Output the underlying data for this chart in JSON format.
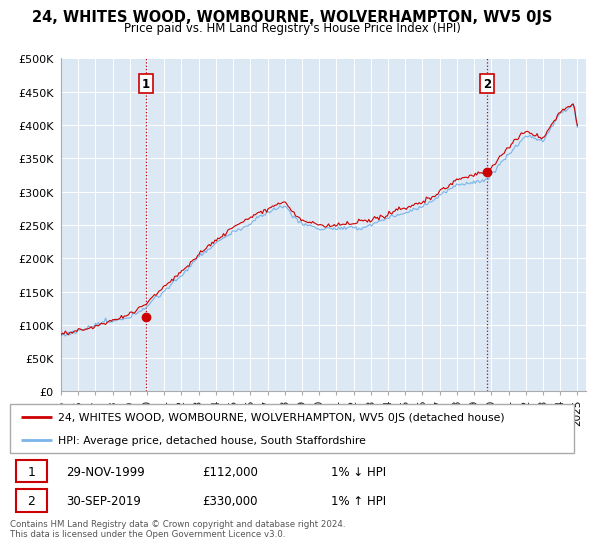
{
  "title": "24, WHITES WOOD, WOMBOURNE, WOLVERHAMPTON, WV5 0JS",
  "subtitle": "Price paid vs. HM Land Registry's House Price Index (HPI)",
  "xlim_start": 1995.0,
  "xlim_end": 2025.5,
  "ylim_min": 0,
  "ylim_max": 500000,
  "yticks": [
    0,
    50000,
    100000,
    150000,
    200000,
    250000,
    300000,
    350000,
    400000,
    450000,
    500000
  ],
  "ytick_labels": [
    "£0",
    "£50K",
    "£100K",
    "£150K",
    "£200K",
    "£250K",
    "£300K",
    "£350K",
    "£400K",
    "£450K",
    "£500K"
  ],
  "xtick_years": [
    1995,
    1996,
    1997,
    1998,
    1999,
    2000,
    2001,
    2002,
    2003,
    2004,
    2005,
    2006,
    2007,
    2008,
    2009,
    2010,
    2011,
    2012,
    2013,
    2014,
    2015,
    2016,
    2017,
    2018,
    2019,
    2020,
    2021,
    2022,
    2023,
    2024,
    2025
  ],
  "hpi_color": "#7ab4e8",
  "price_color": "#cc0000",
  "marker_color": "#cc0000",
  "vline_color": "#cc0000",
  "background_color": "#dce9f5",
  "grid_color": "#ffffff",
  "sale1_date": 1999.92,
  "sale1_price": 112000,
  "sale1_label": "1",
  "sale2_date": 2019.75,
  "sale2_price": 330000,
  "sale2_label": "2",
  "legend_line1": "24, WHITES WOOD, WOMBOURNE, WOLVERHAMPTON, WV5 0JS (detached house)",
  "legend_line2": "HPI: Average price, detached house, South Staffordshire",
  "table_row1_num": "1",
  "table_row1_date": "29-NOV-1999",
  "table_row1_price": "£112,000",
  "table_row1_hpi": "1% ↓ HPI",
  "table_row2_num": "2",
  "table_row2_date": "30-SEP-2019",
  "table_row2_price": "£330,000",
  "table_row2_hpi": "1% ↑ HPI",
  "footnote": "Contains HM Land Registry data © Crown copyright and database right 2024.\nThis data is licensed under the Open Government Licence v3.0."
}
